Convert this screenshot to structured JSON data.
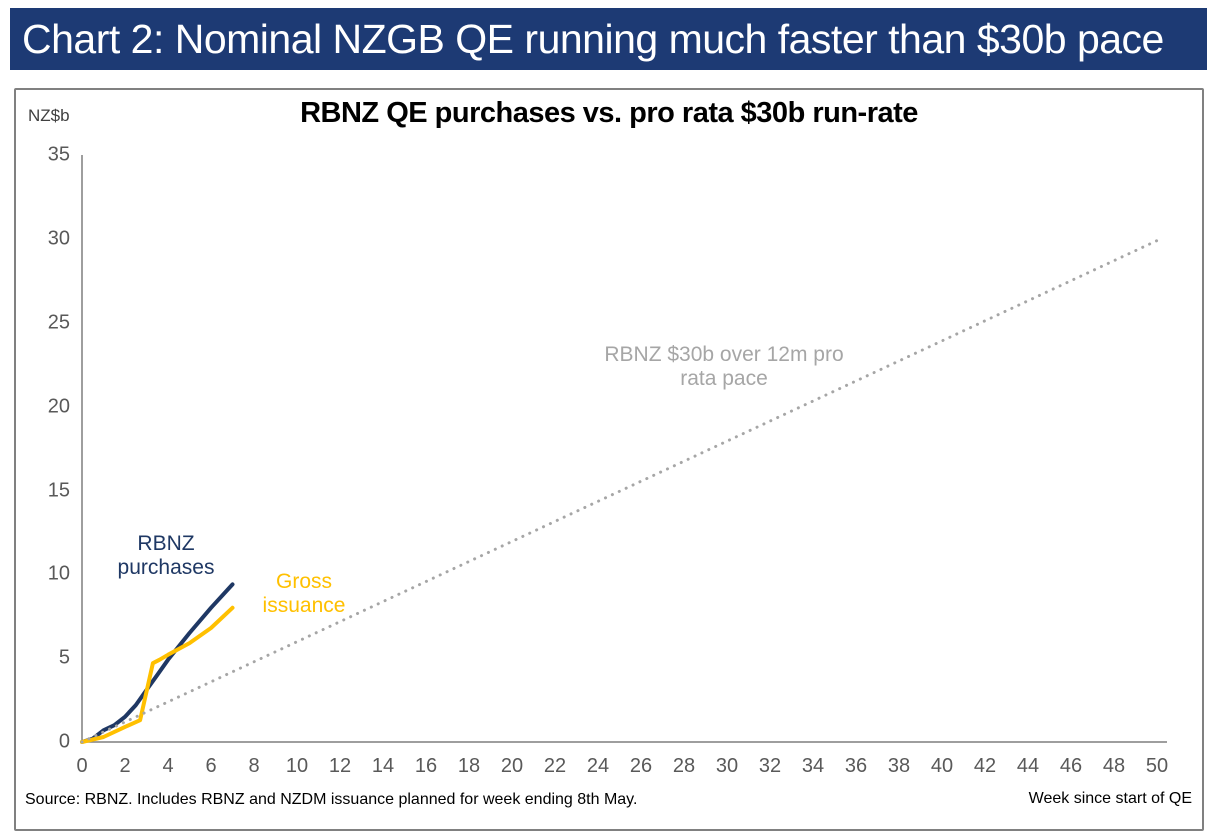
{
  "banner": {
    "title": "Chart 2: Nominal NZGB QE running much faster than $30b pace",
    "background_color": "#1d3a74",
    "text_color": "#ffffff"
  },
  "source_note": "Source: RBNZ. Includes RBNZ and NZDM issuance planned for week ending 8th May.",
  "chart_data": {
    "type": "line",
    "title": "RBNZ QE purchases vs. pro rata $30b run-rate",
    "y_unit_label": "NZ$b",
    "x_axis_title": "Week since start of QE",
    "xlim": [
      0,
      50
    ],
    "ylim": [
      0,
      35
    ],
    "x_ticks": [
      0,
      2,
      4,
      6,
      8,
      10,
      12,
      14,
      16,
      18,
      20,
      22,
      24,
      26,
      28,
      30,
      32,
      34,
      36,
      38,
      40,
      42,
      44,
      46,
      48,
      50
    ],
    "y_ticks": [
      0,
      5,
      10,
      15,
      20,
      25,
      30,
      35
    ],
    "grid": false,
    "legend_position": "inline-labels-next-to-lines",
    "axis_color": "#7f7f7f",
    "tick_label_color": "#595959",
    "series": [
      {
        "name": "RBNZ purchases",
        "label": "RBNZ\npurchases",
        "color": "#1f3864",
        "style": "solid",
        "points": [
          [
            0,
            0
          ],
          [
            0.5,
            0.2
          ],
          [
            1,
            0.7
          ],
          [
            1.5,
            1.0
          ],
          [
            2,
            1.5
          ],
          [
            2.5,
            2.2
          ],
          [
            3,
            3.1
          ],
          [
            3.5,
            4.0
          ],
          [
            4,
            4.9
          ],
          [
            5,
            6.5
          ],
          [
            6,
            8.0
          ],
          [
            7,
            9.4
          ]
        ]
      },
      {
        "name": "Gross issuance",
        "label": "Gross\nissuance",
        "color": "#ffc000",
        "style": "solid",
        "points": [
          [
            0,
            0
          ],
          [
            1,
            0.3
          ],
          [
            2,
            0.9
          ],
          [
            2.7,
            1.3
          ],
          [
            3.3,
            4.7
          ],
          [
            3.6,
            4.9
          ],
          [
            4,
            5.2
          ],
          [
            5,
            5.9
          ],
          [
            6,
            6.8
          ],
          [
            7,
            8.0
          ]
        ]
      },
      {
        "name": "RBNZ $30b over 12m pro rata pace",
        "label": "RBNZ $30b over 12m pro\nrata pace",
        "color": "#a6a6a6",
        "style": "dotted",
        "points": [
          [
            0,
            0
          ],
          [
            50,
            29.9
          ]
        ]
      }
    ]
  }
}
